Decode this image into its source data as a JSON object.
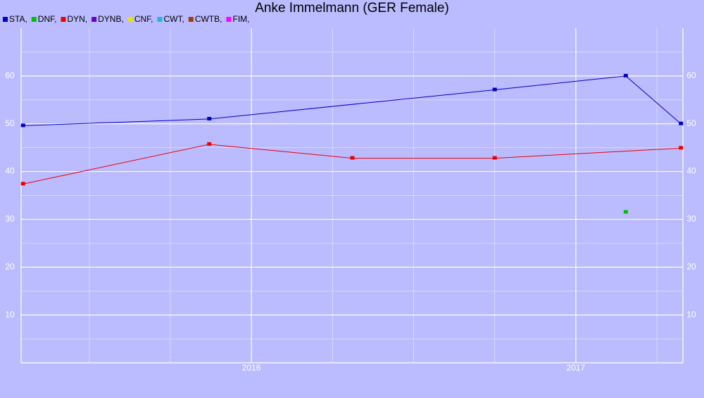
{
  "chart_data": {
    "type": "line",
    "title": "Anke Immelmann (GER Female)",
    "background": "#bbbbff",
    "xlim": [
      2015.29,
      2017.33
    ],
    "xticks": [
      2016,
      2017
    ],
    "xminor": [
      2015.5,
      2015.75,
      2016.25,
      2016.5,
      2016.75,
      2017.25
    ],
    "ylim": [
      0,
      70
    ],
    "yticks": [
      10,
      20,
      30,
      40,
      50,
      60
    ],
    "yminor": [
      5,
      15,
      25,
      35,
      45,
      55,
      65
    ],
    "grid": true,
    "series": [
      {
        "name": "STA,",
        "color": "#0000cc",
        "x": [
          2015.296,
          2015.87,
          2016.75,
          2017.154,
          2017.324
        ],
        "values": [
          49.6,
          51.0,
          57.1,
          60.0,
          50.0
        ]
      },
      {
        "name": "DNF,",
        "color": "#00c000",
        "x": [
          2017.154
        ],
        "values": [
          31.5
        ]
      },
      {
        "name": "DYN,",
        "color": "#ee0000",
        "x": [
          2015.296,
          2015.87,
          2016.311,
          2016.75,
          2017.324
        ],
        "values": [
          37.4,
          45.7,
          42.8,
          42.8,
          44.9
        ]
      },
      {
        "name": "DYNB,",
        "color": "#6a00d0",
        "x": [],
        "values": []
      },
      {
        "name": "CNF,",
        "color": "#e6e600",
        "x": [],
        "values": []
      },
      {
        "name": "CWT,",
        "color": "#20b8d8",
        "x": [],
        "values": []
      },
      {
        "name": "CWTB,",
        "color": "#a04000",
        "x": [],
        "values": []
      },
      {
        "name": "FIM,",
        "color": "#ff00ff",
        "x": [],
        "values": []
      }
    ]
  }
}
